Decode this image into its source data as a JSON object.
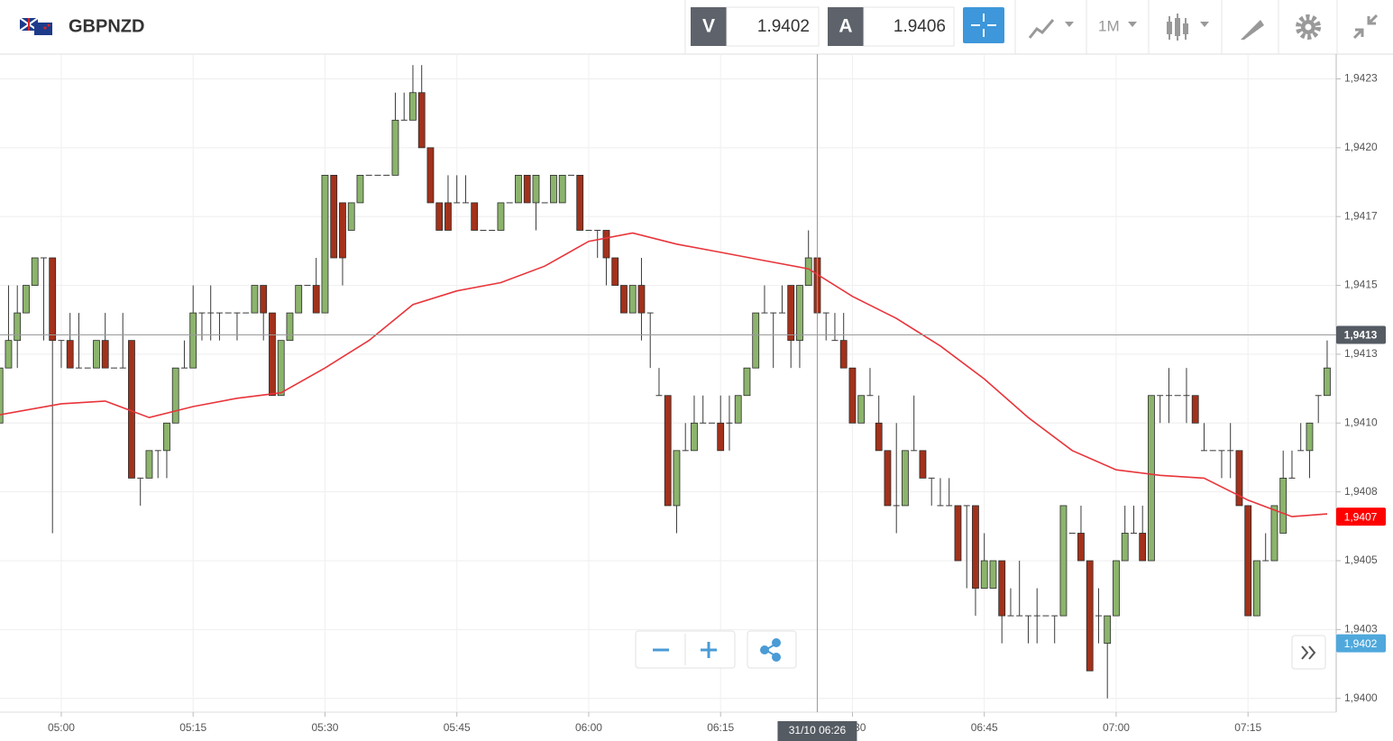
{
  "header": {
    "symbol": "GBPNZD",
    "bid_label": "V",
    "bid": "1.9402",
    "ask_label": "A",
    "ask": "1.9406",
    "timeframe": "1M"
  },
  "chart_data": {
    "type": "candlestick",
    "x": [
      293,
      294,
      295,
      296,
      297,
      298,
      299,
      300,
      301,
      302,
      303,
      304,
      305,
      306,
      307,
      308,
      309,
      310,
      311,
      312,
      313,
      314,
      315,
      316,
      317,
      318,
      319,
      320,
      321,
      322,
      323,
      324,
      325,
      326,
      327,
      328,
      329,
      330,
      331,
      332,
      333,
      334,
      335,
      336,
      337,
      338,
      339,
      340,
      341,
      342,
      343,
      344,
      345,
      346,
      347,
      348,
      349,
      350,
      351,
      352,
      353,
      354,
      355,
      356,
      357,
      358,
      359,
      360,
      361,
      362,
      363,
      364,
      365,
      366,
      367,
      368,
      369,
      370,
      371,
      372,
      373,
      374,
      375,
      376,
      377,
      378,
      379,
      380,
      381,
      382,
      383,
      384,
      385,
      386,
      387,
      388,
      389,
      390,
      391,
      392,
      393,
      394,
      395,
      396,
      397,
      398,
      399,
      400,
      401,
      402,
      403,
      404,
      405,
      406,
      407,
      408,
      409,
      410,
      411,
      412,
      413,
      414,
      415,
      416,
      417,
      418,
      419,
      420,
      421,
      422,
      423,
      424,
      425,
      426,
      427,
      428,
      429,
      430,
      431,
      432,
      433,
      434,
      435,
      436,
      437,
      438,
      439,
      440,
      441,
      442,
      443,
      444
    ],
    "open": [
      1.941,
      1.9412,
      1.9413,
      1.9414,
      1.9415,
      1.9416,
      1.9416,
      1.9413,
      1.9413,
      1.9412,
      1.9412,
      1.9412,
      1.9413,
      1.9412,
      1.9412,
      1.9413,
      1.9408,
      1.9408,
      1.9409,
      1.9409,
      1.941,
      1.9412,
      1.9412,
      1.9414,
      1.9414,
      1.9414,
      1.9414,
      1.9414,
      1.9414,
      1.9414,
      1.9415,
      1.9414,
      1.9411,
      1.9413,
      1.9414,
      1.9415,
      1.9415,
      1.9414,
      1.9419,
      1.9418,
      1.9417,
      1.9418,
      1.9419,
      1.9419,
      1.9419,
      1.9419,
      1.9421,
      1.9421,
      1.9422,
      1.942,
      1.9418,
      1.9418,
      1.9418,
      1.9418,
      1.9418,
      1.9417,
      1.9417,
      1.9417,
      1.9418,
      1.9418,
      1.9419,
      1.9418,
      1.9418,
      1.9418,
      1.9418,
      1.9419,
      1.9419,
      1.9417,
      1.9417,
      1.9417,
      1.9416,
      1.9415,
      1.9414,
      1.9415,
      1.9414,
      1.9411,
      1.9411,
      1.9407,
      1.9409,
      1.9409,
      1.941,
      1.941,
      1.941,
      1.941,
      1.941,
      1.9411,
      1.9412,
      1.9414,
      1.9414,
      1.9414,
      1.9415,
      1.9413,
      1.9415,
      1.9416,
      1.9414,
      1.9413,
      1.9413,
      1.9412,
      1.941,
      1.9411,
      1.941,
      1.9409,
      1.9407,
      1.9407,
      1.9409,
      1.9409,
      1.9408,
      1.9407,
      1.9407,
      1.9407,
      1.9407,
      1.9407,
      1.9404,
      1.9404,
      1.9405,
      1.9403,
      1.9403,
      1.9403,
      1.9403,
      1.9403,
      1.9403,
      1.9403,
      1.9406,
      1.9406,
      1.9405,
      1.9403,
      1.9402,
      1.9403,
      1.9405,
      1.9406,
      1.9406,
      1.9405,
      1.9411,
      1.9411,
      1.9411,
      1.9411,
      1.9411,
      1.9409,
      1.9409,
      1.9409,
      1.9409,
      1.9409,
      1.9407,
      1.9403,
      1.9405,
      1.9405,
      1.9406,
      1.9408,
      1.9409,
      1.9409,
      1.9411,
      1.9411
    ],
    "high": [
      1.9412,
      1.9415,
      1.9415,
      1.9415,
      1.9416,
      1.9416,
      1.9416,
      1.9413,
      1.9414,
      1.9414,
      1.9412,
      1.9413,
      1.9414,
      1.9412,
      1.9414,
      1.9413,
      1.9408,
      1.9409,
      1.9409,
      1.941,
      1.9412,
      1.9413,
      1.9415,
      1.9414,
      1.9415,
      1.9414,
      1.9414,
      1.9414,
      1.9414,
      1.9415,
      1.9415,
      1.9414,
      1.9413,
      1.9414,
      1.9415,
      1.9415,
      1.9416,
      1.9419,
      1.9419,
      1.9418,
      1.9418,
      1.9419,
      1.9419,
      1.9419,
      1.9419,
      1.9422,
      1.9422,
      1.9423,
      1.9423,
      1.942,
      1.9418,
      1.9419,
      1.9419,
      1.9419,
      1.9418,
      1.9417,
      1.9417,
      1.9418,
      1.9418,
      1.9419,
      1.9419,
      1.9419,
      1.9418,
      1.9419,
      1.9419,
      1.9419,
      1.9419,
      1.9417,
      1.9417,
      1.9417,
      1.9416,
      1.9415,
      1.9415,
      1.9416,
      1.9414,
      1.9412,
      1.9411,
      1.9409,
      1.941,
      1.9411,
      1.9411,
      1.941,
      1.9411,
      1.9411,
      1.9411,
      1.9412,
      1.9414,
      1.9415,
      1.9414,
      1.9415,
      1.9415,
      1.9415,
      1.9417,
      1.9416,
      1.9414,
      1.9414,
      1.9414,
      1.9412,
      1.9411,
      1.9412,
      1.9411,
      1.9409,
      1.941,
      1.9409,
      1.9411,
      1.9409,
      1.9408,
      1.9408,
      1.9408,
      1.9407,
      1.9407,
      1.9407,
      1.9406,
      1.9405,
      1.9405,
      1.9404,
      1.9405,
      1.9403,
      1.9404,
      1.9403,
      1.9403,
      1.9407,
      1.9406,
      1.9407,
      1.9405,
      1.9404,
      1.9403,
      1.9405,
      1.9407,
      1.9407,
      1.9407,
      1.9411,
      1.9411,
      1.9412,
      1.9411,
      1.9412,
      1.9411,
      1.941,
      1.9409,
      1.9409,
      1.941,
      1.9409,
      1.9407,
      1.9405,
      1.9406,
      1.9407,
      1.9409,
      1.9409,
      1.941,
      1.941,
      1.9411,
      1.9413
    ],
    "low": [
      1.941,
      1.9412,
      1.9412,
      1.9414,
      1.9415,
      1.9413,
      1.9406,
      1.9412,
      1.9412,
      1.9412,
      1.9412,
      1.9412,
      1.9412,
      1.9412,
      1.9412,
      1.9408,
      1.9407,
      1.9408,
      1.9408,
      1.9408,
      1.941,
      1.9412,
      1.9412,
      1.9413,
      1.9413,
      1.9413,
      1.9414,
      1.9413,
      1.9414,
      1.9414,
      1.9413,
      1.9411,
      1.9411,
      1.9413,
      1.9414,
      1.9415,
      1.9414,
      1.9414,
      1.9416,
      1.9415,
      1.9417,
      1.9418,
      1.9419,
      1.9419,
      1.9419,
      1.9419,
      1.9421,
      1.9421,
      1.942,
      1.9418,
      1.9417,
      1.9417,
      1.9418,
      1.9418,
      1.9417,
      1.9417,
      1.9417,
      1.9417,
      1.9418,
      1.9418,
      1.9418,
      1.9417,
      1.9418,
      1.9418,
      1.9418,
      1.9419,
      1.9417,
      1.9417,
      1.9416,
      1.9415,
      1.9415,
      1.9414,
      1.9414,
      1.9413,
      1.9412,
      1.9411,
      1.9407,
      1.9406,
      1.9409,
      1.9409,
      1.941,
      1.941,
      1.9409,
      1.9409,
      1.941,
      1.9411,
      1.9412,
      1.9414,
      1.9412,
      1.9414,
      1.9412,
      1.9412,
      1.9415,
      1.9414,
      1.9413,
      1.9413,
      1.9412,
      1.941,
      1.941,
      1.9411,
      1.9409,
      1.9407,
      1.9406,
      1.9407,
      1.9409,
      1.9408,
      1.9407,
      1.9407,
      1.9407,
      1.9405,
      1.9404,
      1.9403,
      1.9404,
      1.9404,
      1.9402,
      1.9403,
      1.9403,
      1.9402,
      1.9402,
      1.9403,
      1.9402,
      1.9403,
      1.9406,
      1.9405,
      1.9401,
      1.9402,
      1.94,
      1.9403,
      1.9405,
      1.9406,
      1.9405,
      1.9405,
      1.941,
      1.941,
      1.9411,
      1.941,
      1.941,
      1.9409,
      1.9409,
      1.9408,
      1.9408,
      1.9407,
      1.9403,
      1.9403,
      1.9405,
      1.9405,
      1.9406,
      1.9408,
      1.9409,
      1.9408,
      1.941,
      1.9411
    ],
    "close": [
      1.9412,
      1.9413,
      1.9414,
      1.9415,
      1.9416,
      1.9416,
      1.9413,
      1.9413,
      1.9412,
      1.9412,
      1.9412,
      1.9413,
      1.9412,
      1.9412,
      1.9412,
      1.9408,
      1.9408,
      1.9409,
      1.9409,
      1.941,
      1.9412,
      1.9412,
      1.9414,
      1.9414,
      1.9414,
      1.9414,
      1.9414,
      1.9414,
      1.9414,
      1.9415,
      1.9414,
      1.9411,
      1.9413,
      1.9414,
      1.9415,
      1.9415,
      1.9414,
      1.9419,
      1.9416,
      1.9416,
      1.9418,
      1.9419,
      1.9419,
      1.9419,
      1.9419,
      1.9421,
      1.9421,
      1.9422,
      1.942,
      1.9418,
      1.9417,
      1.9417,
      1.9418,
      1.9418,
      1.9417,
      1.9417,
      1.9417,
      1.9418,
      1.9418,
      1.9419,
      1.9418,
      1.9419,
      1.9418,
      1.9419,
      1.9419,
      1.9419,
      1.9417,
      1.9417,
      1.9417,
      1.9416,
      1.9415,
      1.9414,
      1.9415,
      1.9414,
      1.9414,
      1.9411,
      1.9407,
      1.9409,
      1.9409,
      1.941,
      1.941,
      1.941,
      1.9409,
      1.941,
      1.9411,
      1.9412,
      1.9414,
      1.9414,
      1.9414,
      1.9414,
      1.9413,
      1.9415,
      1.9416,
      1.9414,
      1.9414,
      1.9413,
      1.9412,
      1.941,
      1.9411,
      1.9411,
      1.9409,
      1.9407,
      1.9407,
      1.9409,
      1.9409,
      1.9408,
      1.9408,
      1.9407,
      1.9407,
      1.9405,
      1.9407,
      1.9404,
      1.9405,
      1.9405,
      1.9403,
      1.9403,
      1.9403,
      1.9403,
      1.9403,
      1.9403,
      1.9403,
      1.9407,
      1.9406,
      1.9405,
      1.9401,
      1.9403,
      1.9403,
      1.9405,
      1.9406,
      1.9406,
      1.9405,
      1.9411,
      1.9411,
      1.9411,
      1.9411,
      1.9411,
      1.941,
      1.9409,
      1.9409,
      1.9409,
      1.9409,
      1.9407,
      1.9403,
      1.9405,
      1.9405,
      1.9407,
      1.9408,
      1.9408,
      1.9409,
      1.941,
      1.9411,
      1.9412
    ],
    "up_color": "#8cb46c",
    "down_color": "#a3311b",
    "lines": [
      {
        "color": "#e8343a",
        "x": [
          293,
          300,
          305,
          310,
          315,
          320,
          325,
          330,
          335,
          340,
          345,
          350,
          355,
          360,
          365,
          370,
          375,
          380,
          385,
          390,
          395,
          400,
          405,
          410,
          415,
          420,
          425,
          430,
          435,
          440,
          444
        ],
        "values": [
          1.94103,
          1.94107,
          1.94108,
          1.94102,
          1.94106,
          1.94109,
          1.94111,
          1.9412,
          1.9413,
          1.94143,
          1.94148,
          1.94151,
          1.94157,
          1.94166,
          1.94169,
          1.94165,
          1.94162,
          1.94159,
          1.94156,
          1.94146,
          1.94138,
          1.94128,
          1.94116,
          1.94102,
          1.9409,
          1.94083,
          1.94081,
          1.9408,
          1.94072,
          1.94066,
          1.94067
        ]
      }
    ],
    "xlim": [
      293.03,
      445.03
    ],
    "xticks": [
      {
        "value": 300,
        "label": "05:00"
      },
      {
        "value": 315,
        "label": "05:15"
      },
      {
        "value": 330,
        "label": "05:30"
      },
      {
        "value": 345,
        "label": "05:45"
      },
      {
        "value": 360,
        "label": "06:00"
      },
      {
        "value": 375,
        "label": "06:15"
      },
      {
        "value": 390,
        "label": "06:30"
      },
      {
        "value": 405,
        "label": "06:45"
      },
      {
        "value": 420,
        "label": "07:00"
      },
      {
        "value": 435,
        "label": "07:15"
      }
    ],
    "ylim": [
      1.93995,
      1.94234
    ],
    "yticks": [
      {
        "value": 1.94,
        "label": "1,9400"
      },
      {
        "value": 1.94025,
        "label": "1,9403"
      },
      {
        "value": 1.9405,
        "label": "1,9405"
      },
      {
        "value": 1.94075,
        "label": "1,9408"
      },
      {
        "value": 1.941,
        "label": "1,9410"
      },
      {
        "value": 1.94125,
        "label": "1,9413"
      },
      {
        "value": 1.9415,
        "label": "1,9415"
      },
      {
        "value": 1.94175,
        "label": "1,9417"
      },
      {
        "value": 1.942,
        "label": "1,9420"
      },
      {
        "value": 1.94225,
        "label": "1,9423"
      }
    ],
    "grid": true,
    "crosshair": {
      "x": 386,
      "x_label": "31/10 06:26",
      "y": 1.94132,
      "y_label": "1,9413"
    },
    "price_markers": [
      {
        "value": 1.94066,
        "label": "1,9407",
        "color": "#ff0000"
      },
      {
        "value": 1.9402,
        "label": "1,9402",
        "color": "#4fa8dc"
      }
    ]
  }
}
